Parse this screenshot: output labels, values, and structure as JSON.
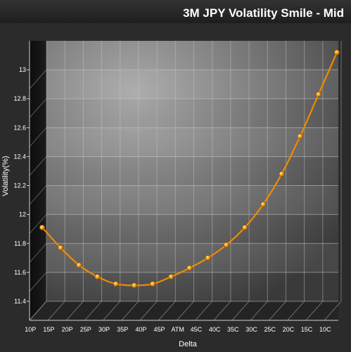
{
  "chart_data": {
    "type": "line",
    "title": "3M JPY Volatility Smile - Mid",
    "xlabel": "Delta",
    "ylabel": "Volatility(%)",
    "categories": [
      "10P",
      "15P",
      "20P",
      "25P",
      "30P",
      "35P",
      "40P",
      "45P",
      "ATM",
      "45C",
      "40C",
      "35C",
      "30C",
      "25C",
      "20C",
      "15C",
      "10C"
    ],
    "values": [
      11.91,
      11.77,
      11.65,
      11.57,
      11.52,
      11.51,
      11.52,
      11.57,
      11.63,
      11.7,
      11.79,
      11.91,
      12.07,
      12.28,
      12.54,
      12.83,
      13.12
    ],
    "ylim": [
      11.4,
      13.2
    ],
    "yticks": [
      "11.4",
      "11.6",
      "11.8",
      "12",
      "12.2",
      "12.4",
      "12.6",
      "12.8",
      "13"
    ],
    "grid": true,
    "colors": {
      "line": "#f08a00",
      "marker": "#f5a623",
      "background": "#2a2a2a",
      "title_bar": "#262626",
      "text": "#ffffff"
    }
  }
}
